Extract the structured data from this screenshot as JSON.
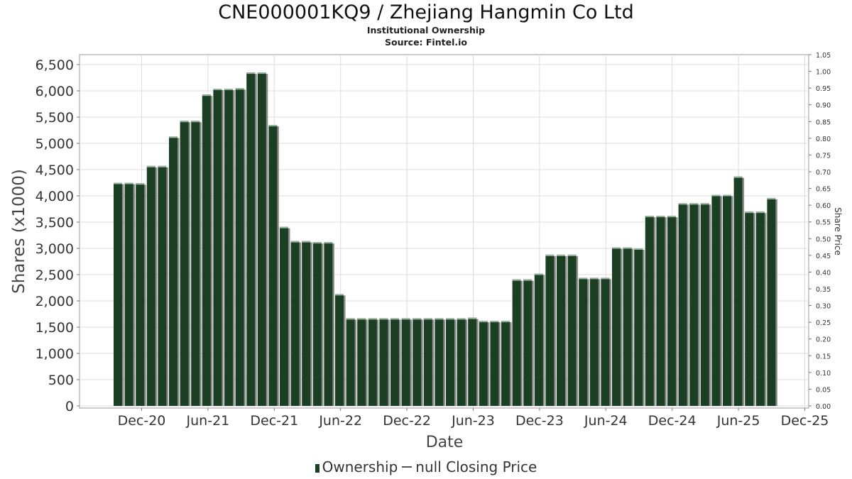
{
  "chart_data": {
    "type": "bar",
    "title": "CNE000001KQ9 / Zhejiang Hangmin Co Ltd",
    "subtitle": "Institutional Ownership",
    "source": "Source: Fintel.io",
    "xlabel": "Date",
    "ylabel": "Shares (x1000)",
    "y2label": "Share Price",
    "ylim": [
      0,
      6500
    ],
    "y_ticks": [
      "0",
      "500",
      "1,000",
      "1,500",
      "2,000",
      "2,500",
      "3,000",
      "3,500",
      "4,000",
      "4,500",
      "5,000",
      "5,500",
      "6,000",
      "6,500"
    ],
    "y2lim": [
      0,
      1.05
    ],
    "y2_ticks": [
      "0.00",
      "0.05",
      "0.10",
      "0.15",
      "0.20",
      "0.25",
      "0.30",
      "0.35",
      "0.40",
      "0.45",
      "0.50",
      "0.55",
      "0.60",
      "0.65",
      "0.70",
      "0.75",
      "0.80",
      "0.85",
      "0.90",
      "0.95",
      "1.00",
      "1.05"
    ],
    "x_ticks": [
      "Dec-20",
      "Jun-21",
      "Dec-21",
      "Jun-22",
      "Dec-22",
      "Jun-23",
      "Dec-23",
      "Jun-24",
      "Dec-24",
      "Jun-25",
      "Dec-25"
    ],
    "grid": true,
    "legend_position": "bottom",
    "series": [
      {
        "name": "Ownership",
        "color": "#1b3f22",
        "values": [
          4250,
          4250,
          4240,
          4570,
          4570,
          5130,
          5430,
          5430,
          5930,
          6040,
          6040,
          6050,
          6350,
          6350,
          5350,
          3410,
          3140,
          3140,
          3120,
          3120,
          2130,
          1670,
          1670,
          1670,
          1670,
          1670,
          1670,
          1670,
          1670,
          1670,
          1670,
          1670,
          1680,
          1620,
          1620,
          1620,
          2410,
          2410,
          2520,
          2880,
          2880,
          2880,
          2440,
          2440,
          2440,
          3020,
          3020,
          3000,
          3620,
          3620,
          3620,
          3860,
          3860,
          3860,
          4020,
          4020,
          4370,
          3700,
          3700,
          3960
        ]
      },
      {
        "name": "null Closing Price",
        "values": []
      }
    ]
  },
  "legend": {
    "ownership_label": "Ownership",
    "price_label": "null Closing Price"
  }
}
